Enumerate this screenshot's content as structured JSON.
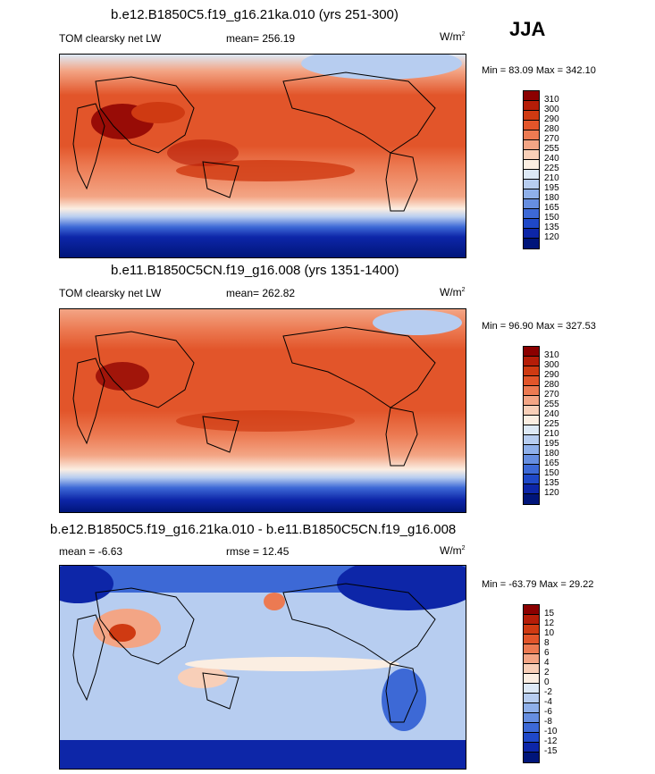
{
  "season": "JJA",
  "panels": [
    {
      "title": "b.e12.B1850C5.f19_g16.21ka.010 (yrs 251-300)",
      "left_label": "TOM clearsky net LW",
      "center_label": "mean= 256.19",
      "units": "W/m",
      "units_exp": "2",
      "minmax": "Min = 83.09 Max = 342.10",
      "levels": [
        "310",
        "300",
        "290",
        "280",
        "270",
        "255",
        "240",
        "225",
        "210",
        "195",
        "180",
        "165",
        "150",
        "135",
        "120"
      ],
      "colors": [
        "#8b0000",
        "#b51d08",
        "#cf3a12",
        "#e2552a",
        "#ec7a52",
        "#f3a585",
        "#f8cfb8",
        "#fbeee2",
        "#dde9f6",
        "#b7cdf0",
        "#8fb0ea",
        "#668ee0",
        "#3d69d6",
        "#1f48c8",
        "#0d26a8",
        "#00157a"
      ]
    },
    {
      "title": "b.e11.B1850C5CN.f19_g16.008 (yrs 1351-1400)",
      "left_label": "TOM clearsky net LW",
      "center_label": "mean= 262.82",
      "units": "W/m",
      "units_exp": "2",
      "minmax": "Min = 96.90 Max = 327.53",
      "levels": [
        "310",
        "300",
        "290",
        "280",
        "270",
        "255",
        "240",
        "225",
        "210",
        "195",
        "180",
        "165",
        "150",
        "135",
        "120"
      ],
      "colors": [
        "#8b0000",
        "#b51d08",
        "#cf3a12",
        "#e2552a",
        "#ec7a52",
        "#f3a585",
        "#f8cfb8",
        "#fbeee2",
        "#dde9f6",
        "#b7cdf0",
        "#8fb0ea",
        "#668ee0",
        "#3d69d6",
        "#1f48c8",
        "#0d26a8",
        "#00157a"
      ]
    },
    {
      "title": "b.e12.B1850C5.f19_g16.21ka.010 - b.e11.B1850C5CN.f19_g16.008",
      "left_label": "mean =  -6.63",
      "center_label": "rmse =  12.45",
      "units": "W/m",
      "units_exp": "2",
      "minmax": "Min = -63.79 Max =  29.22",
      "levels": [
        "15",
        "12",
        "10",
        "8",
        "6",
        "4",
        "2",
        "0",
        "-2",
        "-4",
        "-6",
        "-8",
        "-10",
        "-12",
        "-15"
      ],
      "colors": [
        "#8b0000",
        "#b51d08",
        "#cf3a12",
        "#e2552a",
        "#ec7a52",
        "#f3a585",
        "#f8cfb8",
        "#fbeee2",
        "#dde9f6",
        "#b7cdf0",
        "#8fb0ea",
        "#668ee0",
        "#3d69d6",
        "#1f48c8",
        "#0d26a8",
        "#00157a"
      ]
    }
  ]
}
